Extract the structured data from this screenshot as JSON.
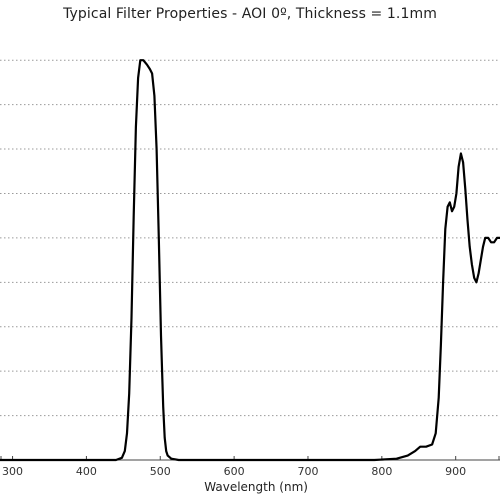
{
  "chart_data": {
    "type": "line",
    "title": "Typical Filter Properties - AOI 0º, Thickness = 1.1mm",
    "xlabel": "Wavelength (nm)",
    "ylabel": "",
    "xlim": [
      283,
      960
    ],
    "ylim": [
      0,
      95
    ],
    "x_ticks": [
      300,
      400,
      500,
      600,
      700,
      800,
      900
    ],
    "y_gridlines": [
      10,
      20,
      30,
      40,
      50,
      60,
      70,
      80,
      90
    ],
    "grid": "horizontal dotted",
    "legend": "none",
    "line_color": "#000000",
    "series": [
      {
        "x": [
          283,
          400,
          440,
          448,
          452,
          455,
          458,
          461,
          464,
          467,
          470,
          473,
          477,
          482,
          486,
          489,
          492,
          495,
          498,
          501,
          504,
          506,
          508,
          510,
          515,
          525,
          550,
          600,
          650,
          700,
          750,
          790,
          820,
          835,
          845,
          852,
          860,
          868,
          873,
          877,
          880,
          883,
          886,
          889,
          892,
          895,
          898,
          901,
          904,
          907,
          910,
          913,
          916,
          919,
          922,
          925,
          928,
          931,
          934,
          937,
          940,
          944,
          948,
          952,
          956,
          960
        ],
        "y": [
          0,
          0,
          0,
          0.5,
          2,
          6,
          15,
          32,
          55,
          75,
          86,
          90,
          90,
          89,
          88,
          87,
          82,
          70,
          50,
          28,
          12,
          5,
          2,
          1,
          0.3,
          0,
          0,
          0,
          0,
          0,
          0,
          0,
          0.3,
          1,
          2,
          3,
          3,
          3.5,
          6,
          14,
          26,
          40,
          52,
          57,
          58,
          56,
          57,
          60,
          66,
          69,
          67,
          61,
          54,
          48,
          44,
          41,
          40,
          42,
          45,
          48,
          50,
          50,
          49,
          49,
          50,
          50
        ]
      }
    ]
  }
}
